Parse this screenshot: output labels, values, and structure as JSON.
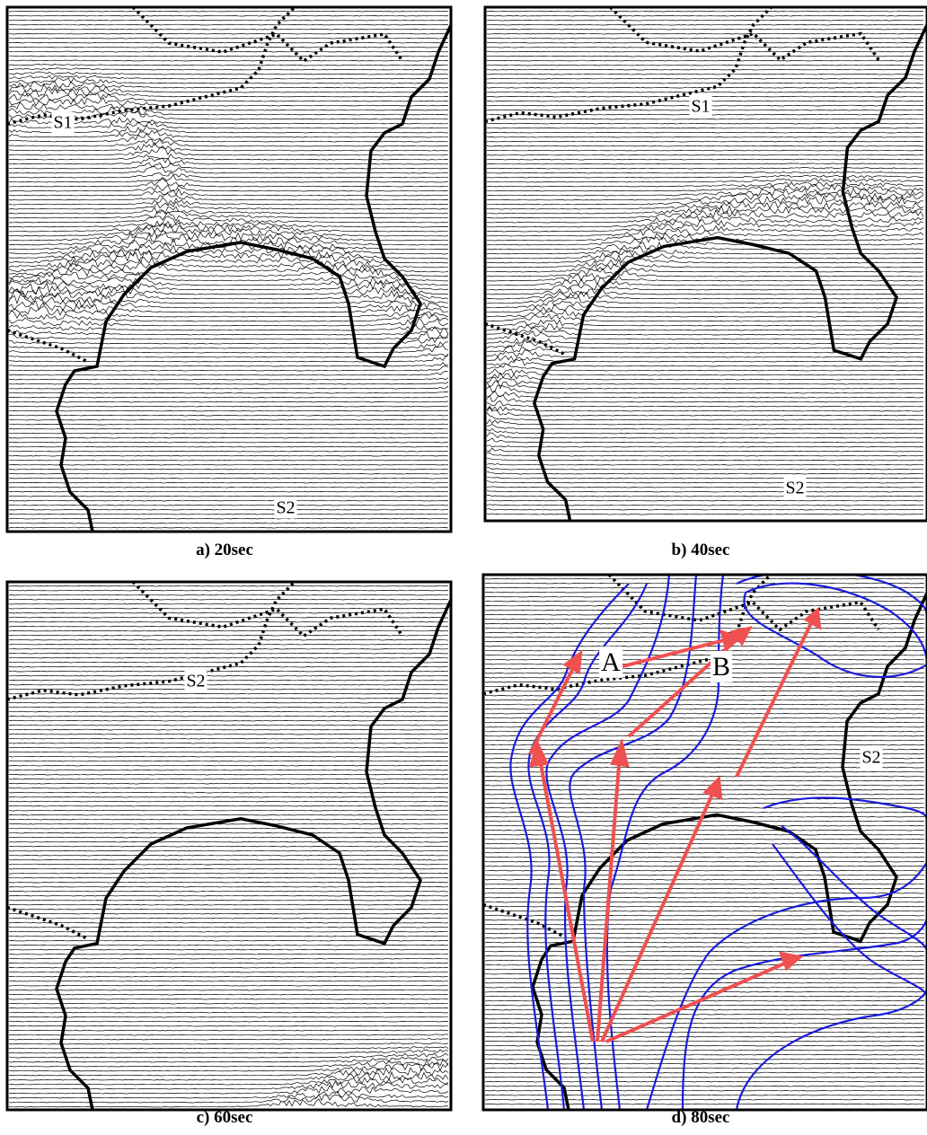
{
  "panels": [
    {
      "caption": "a) 20sec",
      "labels": [
        "S1",
        "S2"
      ]
    },
    {
      "caption": "b) 40sec",
      "labels": [
        "S1",
        "S2"
      ]
    },
    {
      "caption": "c) 60sec",
      "labels": [
        "S2"
      ]
    },
    {
      "caption": "d) 80sec",
      "labels": [
        "A",
        "B",
        "S2"
      ]
    }
  ]
}
